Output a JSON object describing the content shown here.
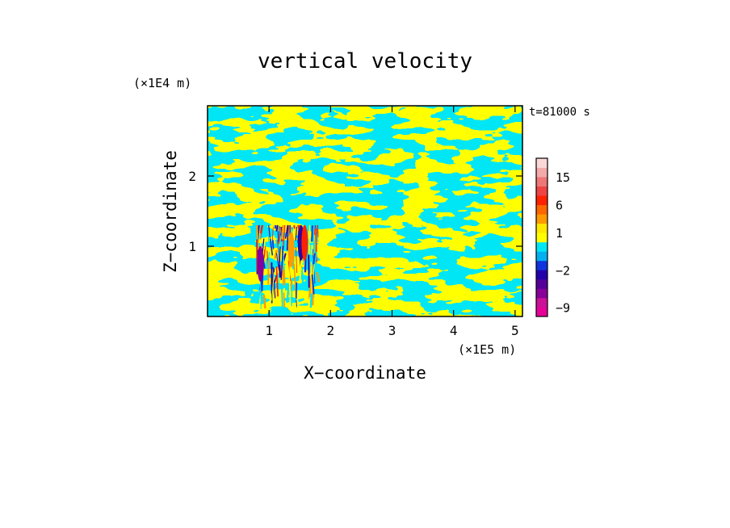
{
  "chart_data": {
    "type": "heatmap",
    "title": "vertical velocity",
    "time_label": "t=81000 s",
    "xlabel": "X−coordinate",
    "ylabel": "Z−coordinate",
    "x_unit": "(×1E5 m)",
    "y_unit": "(×1E4 m)",
    "xlim": [
      0,
      5.12
    ],
    "ylim": [
      0,
      3.0
    ],
    "x_ticks": [
      {
        "value": 1,
        "label": "1"
      },
      {
        "value": 2,
        "label": "2"
      },
      {
        "value": 3,
        "label": "3"
      },
      {
        "value": 4,
        "label": "4"
      },
      {
        "value": 5,
        "label": "5"
      }
    ],
    "y_ticks": [
      {
        "value": 1,
        "label": "1"
      },
      {
        "value": 2,
        "label": "2"
      }
    ],
    "colorbar": {
      "levels": [
        -12,
        -9,
        -6,
        -4,
        -3,
        -2,
        -1,
        0,
        0.5,
        1,
        2,
        4,
        6,
        9,
        12,
        15,
        18,
        21
      ],
      "colors": [
        "#e60099",
        "#cc1199",
        "#880099",
        "#550099",
        "#2200aa",
        "#1133dd",
        "#00b0f0",
        "#00e6f5",
        "#ffff00",
        "#ffe800",
        "#ff9900",
        "#ff6600",
        "#ff2200",
        "#ee4444",
        "#ee7777",
        "#f4aaaa",
        "#fad8d8"
      ],
      "tick_labels": [
        {
          "value": 15,
          "label": "15"
        },
        {
          "value": 6,
          "label": "6"
        },
        {
          "value": 1,
          "label": "1"
        },
        {
          "value": -2,
          "label": "−2"
        },
        {
          "value": -9,
          "label": "−9"
        }
      ]
    },
    "field_colors": {
      "updraft": "#ffff00",
      "downdraft": "#00e6f5",
      "strong_up": "#ff2200",
      "strong_down": "#330099"
    }
  }
}
